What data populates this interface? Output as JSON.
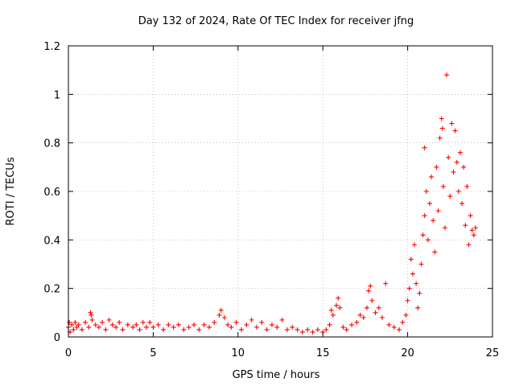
{
  "chart_data": {
    "type": "scatter",
    "title": "Day 132 of 2024, Rate Of TEC Index for receiver jfng",
    "xlabel": "GPS time / hours",
    "ylabel": "ROTI / TECUs",
    "xlim": [
      0,
      25
    ],
    "ylim": [
      0,
      1.2
    ],
    "xticks": [
      0,
      5,
      10,
      15,
      20,
      25
    ],
    "yticks": [
      0,
      0.2,
      0.4,
      0.6,
      0.8,
      1,
      1.2
    ],
    "xtick_labels": [
      "0",
      "5",
      "10",
      "15",
      "20",
      "25"
    ],
    "ytick_labels": [
      "0",
      "0.2",
      "0.4",
      "0.6",
      "0.8",
      "1",
      "1.2"
    ],
    "grid": true,
    "marker": "+",
    "color": "#ff0000",
    "series": [
      {
        "name": "ROTI",
        "points": [
          [
            0.0,
            0.04
          ],
          [
            0.05,
            0.06
          ],
          [
            0.1,
            0.02
          ],
          [
            0.2,
            0.05
          ],
          [
            0.3,
            0.03
          ],
          [
            0.4,
            0.06
          ],
          [
            0.5,
            0.04
          ],
          [
            0.6,
            0.05
          ],
          [
            0.8,
            0.03
          ],
          [
            1.0,
            0.06
          ],
          [
            1.2,
            0.04
          ],
          [
            1.3,
            0.1
          ],
          [
            1.35,
            0.09
          ],
          [
            1.4,
            0.07
          ],
          [
            1.6,
            0.05
          ],
          [
            1.8,
            0.04
          ],
          [
            2.0,
            0.06
          ],
          [
            2.2,
            0.03
          ],
          [
            2.4,
            0.07
          ],
          [
            2.6,
            0.05
          ],
          [
            2.8,
            0.04
          ],
          [
            3.0,
            0.06
          ],
          [
            3.2,
            0.03
          ],
          [
            3.5,
            0.05
          ],
          [
            3.8,
            0.04
          ],
          [
            4.0,
            0.05
          ],
          [
            4.2,
            0.03
          ],
          [
            4.4,
            0.06
          ],
          [
            4.6,
            0.04
          ],
          [
            4.8,
            0.06
          ],
          [
            5.0,
            0.04
          ],
          [
            5.3,
            0.05
          ],
          [
            5.6,
            0.03
          ],
          [
            5.9,
            0.05
          ],
          [
            6.2,
            0.04
          ],
          [
            6.5,
            0.05
          ],
          [
            6.8,
            0.03
          ],
          [
            7.1,
            0.04
          ],
          [
            7.4,
            0.05
          ],
          [
            7.7,
            0.03
          ],
          [
            8.0,
            0.05
          ],
          [
            8.3,
            0.04
          ],
          [
            8.6,
            0.06
          ],
          [
            8.9,
            0.09
          ],
          [
            9.0,
            0.11
          ],
          [
            9.2,
            0.08
          ],
          [
            9.4,
            0.05
          ],
          [
            9.6,
            0.04
          ],
          [
            9.9,
            0.06
          ],
          [
            10.2,
            0.03
          ],
          [
            10.5,
            0.05
          ],
          [
            10.8,
            0.07
          ],
          [
            11.1,
            0.04
          ],
          [
            11.4,
            0.06
          ],
          [
            11.7,
            0.03
          ],
          [
            12.0,
            0.05
          ],
          [
            12.3,
            0.04
          ],
          [
            12.6,
            0.07
          ],
          [
            12.9,
            0.03
          ],
          [
            13.2,
            0.04
          ],
          [
            13.5,
            0.03
          ],
          [
            13.8,
            0.02
          ],
          [
            14.1,
            0.03
          ],
          [
            14.4,
            0.02
          ],
          [
            14.7,
            0.03
          ],
          [
            15.0,
            0.02
          ],
          [
            15.2,
            0.03
          ],
          [
            15.4,
            0.05
          ],
          [
            15.5,
            0.11
          ],
          [
            15.6,
            0.09
          ],
          [
            15.8,
            0.13
          ],
          [
            15.9,
            0.16
          ],
          [
            16.0,
            0.12
          ],
          [
            16.2,
            0.04
          ],
          [
            16.4,
            0.03
          ],
          [
            16.7,
            0.05
          ],
          [
            17.0,
            0.06
          ],
          [
            17.2,
            0.09
          ],
          [
            17.4,
            0.08
          ],
          [
            17.6,
            0.12
          ],
          [
            17.7,
            0.19
          ],
          [
            17.8,
            0.21
          ],
          [
            17.9,
            0.15
          ],
          [
            18.1,
            0.1
          ],
          [
            18.3,
            0.12
          ],
          [
            18.5,
            0.08
          ],
          [
            18.7,
            0.22
          ],
          [
            18.9,
            0.05
          ],
          [
            19.2,
            0.04
          ],
          [
            19.5,
            0.03
          ],
          [
            19.7,
            0.06
          ],
          [
            19.9,
            0.09
          ],
          [
            20.0,
            0.15
          ],
          [
            20.1,
            0.2
          ],
          [
            20.2,
            0.32
          ],
          [
            20.3,
            0.26
          ],
          [
            20.4,
            0.38
          ],
          [
            20.5,
            0.22
          ],
          [
            20.6,
            0.12
          ],
          [
            20.7,
            0.18
          ],
          [
            20.8,
            0.3
          ],
          [
            20.9,
            0.42
          ],
          [
            21.0,
            0.5
          ],
          [
            21.0,
            0.78
          ],
          [
            21.1,
            0.6
          ],
          [
            21.2,
            0.4
          ],
          [
            21.3,
            0.55
          ],
          [
            21.4,
            0.66
          ],
          [
            21.5,
            0.48
          ],
          [
            21.6,
            0.35
          ],
          [
            21.7,
            0.7
          ],
          [
            21.8,
            0.52
          ],
          [
            21.9,
            0.82
          ],
          [
            22.0,
            0.9
          ],
          [
            22.05,
            0.86
          ],
          [
            22.1,
            0.62
          ],
          [
            22.2,
            0.45
          ],
          [
            22.3,
            1.08
          ],
          [
            22.4,
            0.74
          ],
          [
            22.5,
            0.58
          ],
          [
            22.6,
            0.88
          ],
          [
            22.7,
            0.68
          ],
          [
            22.8,
            0.85
          ],
          [
            22.9,
            0.72
          ],
          [
            23.0,
            0.6
          ],
          [
            23.1,
            0.76
          ],
          [
            23.2,
            0.55
          ],
          [
            23.3,
            0.7
          ],
          [
            23.4,
            0.46
          ],
          [
            23.5,
            0.62
          ],
          [
            23.6,
            0.38
          ],
          [
            23.7,
            0.5
          ],
          [
            23.8,
            0.44
          ],
          [
            23.9,
            0.42
          ],
          [
            24.0,
            0.45
          ]
        ]
      }
    ]
  }
}
